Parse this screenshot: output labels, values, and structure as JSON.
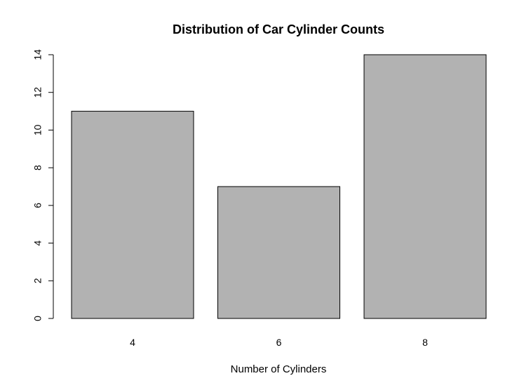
{
  "chart_data": {
    "type": "bar",
    "title": "Distribution of Car Cylinder Counts",
    "xlabel": "Number of Cylinders",
    "ylabel": "",
    "categories": [
      "4",
      "6",
      "8"
    ],
    "values": [
      11,
      7,
      14
    ],
    "ylim": [
      0,
      14
    ],
    "yticks": [
      0,
      2,
      4,
      6,
      8,
      10,
      12,
      14
    ],
    "bar_color": "#b2b2b2",
    "grid": false
  }
}
